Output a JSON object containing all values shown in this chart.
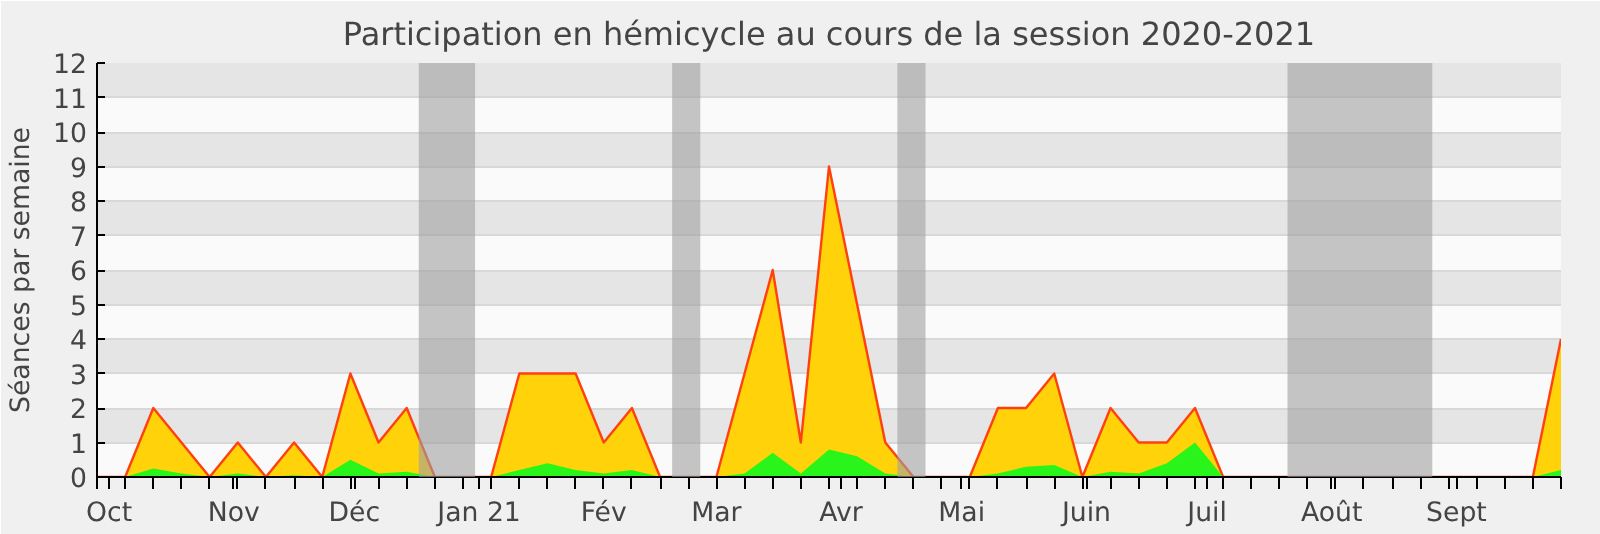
{
  "chart_data": {
    "type": "area",
    "title": "Participation en hémicycle au cours de la session 2020-2021",
    "ylabel": "Séances par semaine",
    "x": [
      "2020-09-28",
      "2020-10-05",
      "2020-10-12",
      "2020-10-19",
      "2020-10-26",
      "2020-11-02",
      "2020-11-09",
      "2020-11-16",
      "2020-11-23",
      "2020-11-30",
      "2020-12-07",
      "2020-12-14",
      "2020-12-21",
      "2020-12-28",
      "2021-01-04",
      "2021-01-11",
      "2021-01-18",
      "2021-01-25",
      "2021-02-01",
      "2021-02-08",
      "2021-02-15",
      "2021-02-22",
      "2021-03-01",
      "2021-03-08",
      "2021-03-15",
      "2021-03-22",
      "2021-03-29",
      "2021-04-05",
      "2021-04-12",
      "2021-04-19",
      "2021-04-26",
      "2021-05-03",
      "2021-05-10",
      "2021-05-17",
      "2021-05-24",
      "2021-05-31",
      "2021-06-07",
      "2021-06-14",
      "2021-06-21",
      "2021-06-28",
      "2021-07-05",
      "2021-07-12",
      "2021-07-19",
      "2021-07-26",
      "2021-08-02",
      "2021-08-09",
      "2021-08-16",
      "2021-08-23",
      "2021-08-30",
      "2021-09-06",
      "2021-09-13",
      "2021-09-20",
      "2021-09-27"
    ],
    "series": [
      {
        "color": "#ffd20a",
        "values": [
          0,
          0,
          2,
          1,
          0,
          1,
          0,
          1,
          0,
          3,
          1,
          2,
          0,
          0,
          0,
          3,
          3,
          3,
          1,
          2,
          0,
          0,
          0,
          3,
          6,
          1,
          9,
          5,
          1,
          0,
          0,
          0,
          2,
          2,
          3,
          0,
          2,
          1,
          1,
          2,
          0,
          0,
          0,
          0,
          0,
          0,
          0,
          0,
          0,
          0,
          0,
          0,
          4
        ]
      },
      {
        "color": "#2af51a",
        "values": [
          0,
          0,
          0.25,
          0.1,
          0,
          0.1,
          0,
          0.05,
          0,
          0.5,
          0.1,
          0.15,
          0,
          0,
          0,
          0.2,
          0.4,
          0.2,
          0.1,
          0.2,
          0,
          0,
          0,
          0.1,
          0.7,
          0.1,
          0.8,
          0.6,
          0.1,
          0,
          0,
          0,
          0.1,
          0.3,
          0.35,
          0,
          0.15,
          0.1,
          0.4,
          1,
          0,
          0,
          0,
          0,
          0,
          0,
          0,
          0,
          0,
          0,
          0,
          0,
          0.2
        ]
      }
    ],
    "xlim": [
      "2020-09-28",
      "2021-09-27"
    ],
    "xticks": [
      {
        "value": "2020-10-01",
        "label": "Oct"
      },
      {
        "value": "2020-11-01",
        "label": "Nov"
      },
      {
        "value": "2020-12-01",
        "label": "Déc"
      },
      {
        "value": "2021-01-01",
        "label": "Jan 21"
      },
      {
        "value": "2021-02-01",
        "label": "Fév"
      },
      {
        "value": "2021-03-01",
        "label": "Mar"
      },
      {
        "value": "2021-04-01",
        "label": "Avr"
      },
      {
        "value": "2021-05-01",
        "label": "Mai"
      },
      {
        "value": "2021-06-01",
        "label": "Juin"
      },
      {
        "value": "2021-07-01",
        "label": "Juil"
      },
      {
        "value": "2021-08-01",
        "label": "Août"
      },
      {
        "value": "2021-09-01",
        "label": "Sept"
      },
      {
        "value": "2020-09-28",
        "label": null
      },
      {
        "value": "2020-10-05",
        "label": null
      },
      {
        "value": "2020-10-12",
        "label": null
      },
      {
        "value": "2020-10-19",
        "label": null
      },
      {
        "value": "2020-10-26",
        "label": null
      },
      {
        "value": "2020-11-02",
        "label": null
      },
      {
        "value": "2020-11-09",
        "label": null
      },
      {
        "value": "2020-11-16",
        "label": null
      },
      {
        "value": "2020-11-23",
        "label": null
      },
      {
        "value": "2020-11-30",
        "label": null
      },
      {
        "value": "2020-12-07",
        "label": null
      },
      {
        "value": "2020-12-14",
        "label": null
      },
      {
        "value": "2020-12-21",
        "label": null
      },
      {
        "value": "2020-12-28",
        "label": null
      },
      {
        "value": "2021-01-04",
        "label": null
      },
      {
        "value": "2021-01-11",
        "label": null
      },
      {
        "value": "2021-01-18",
        "label": null
      },
      {
        "value": "2021-01-25",
        "label": null
      },
      {
        "value": "2021-02-08",
        "label": null
      },
      {
        "value": "2021-02-15",
        "label": null
      },
      {
        "value": "2021-02-22",
        "label": null
      },
      {
        "value": "2021-03-08",
        "label": null
      },
      {
        "value": "2021-03-15",
        "label": null
      },
      {
        "value": "2021-03-22",
        "label": null
      },
      {
        "value": "2021-03-29",
        "label": null
      },
      {
        "value": "2021-04-05",
        "label": null
      },
      {
        "value": "2021-04-12",
        "label": null
      },
      {
        "value": "2021-04-19",
        "label": null
      },
      {
        "value": "2021-04-26",
        "label": null
      },
      {
        "value": "2021-05-03",
        "label": null
      },
      {
        "value": "2021-05-10",
        "label": null
      },
      {
        "value": "2021-05-17",
        "label": null
      },
      {
        "value": "2021-05-24",
        "label": null
      },
      {
        "value": "2021-05-31",
        "label": null
      },
      {
        "value": "2021-06-07",
        "label": null
      },
      {
        "value": "2021-06-14",
        "label": null
      },
      {
        "value": "2021-06-21",
        "label": null
      },
      {
        "value": "2021-06-28",
        "label": null
      },
      {
        "value": "2021-07-05",
        "label": null
      },
      {
        "value": "2021-07-12",
        "label": null
      },
      {
        "value": "2021-07-19",
        "label": null
      },
      {
        "value": "2021-07-26",
        "label": null
      },
      {
        "value": "2021-08-02",
        "label": null
      },
      {
        "value": "2021-08-09",
        "label": null
      },
      {
        "value": "2021-08-16",
        "label": null
      },
      {
        "value": "2021-08-23",
        "label": null
      },
      {
        "value": "2021-08-30",
        "label": null
      },
      {
        "value": "2021-09-06",
        "label": null
      },
      {
        "value": "2021-09-13",
        "label": null
      },
      {
        "value": "2021-09-20",
        "label": null
      },
      {
        "value": "2021-09-27",
        "label": null
      }
    ],
    "ylim": [
      0,
      12
    ],
    "yticks": [
      0,
      1,
      2,
      3,
      4,
      5,
      6,
      7,
      8,
      9,
      10,
      11,
      12
    ],
    "bands": [
      {
        "axis": "x",
        "from": "2020-12-17",
        "to": "2020-12-31",
        "color": "#a0a0a0"
      },
      {
        "axis": "x",
        "from": "2021-02-18",
        "to": "2021-02-25",
        "color": "#a0a0a0"
      },
      {
        "axis": "x",
        "from": "2021-04-15",
        "to": "2021-04-22",
        "color": "#a0a0a0"
      },
      {
        "axis": "x",
        "from": "2021-07-21",
        "to": "2021-08-26",
        "color": "#a0a0a0"
      }
    ],
    "grid": "y"
  }
}
